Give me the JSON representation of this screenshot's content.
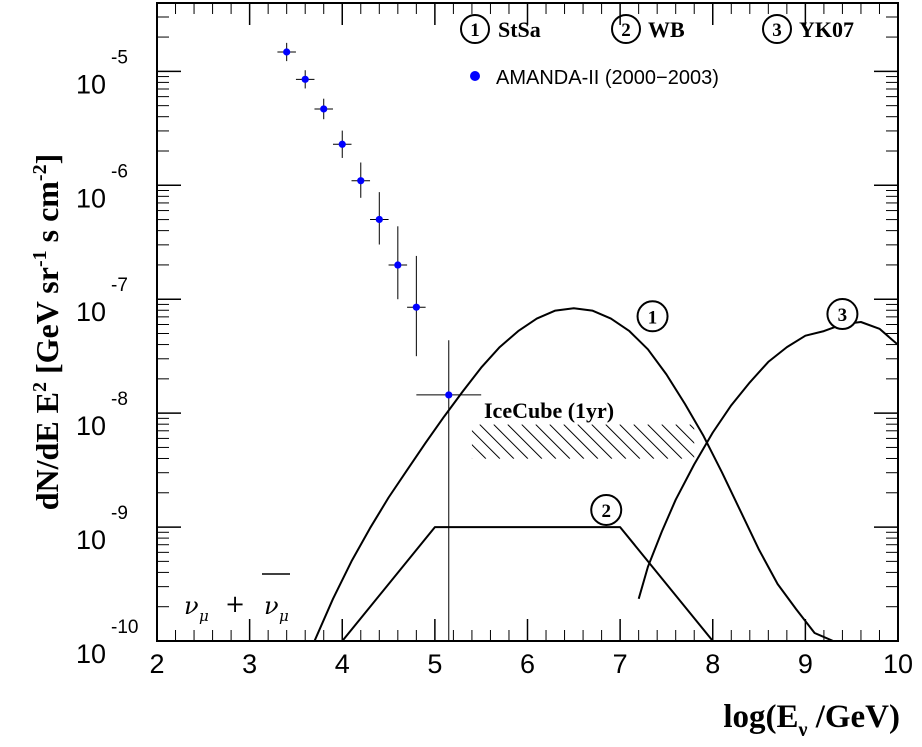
{
  "chart_data": {
    "type": "line",
    "xlabel": "log(E",
    "xlabel_sub": "ν",
    "xlabel_tail": " /GeV)",
    "ylabel": "dN/dE E",
    "ylabel_tail": " [GeV sr",
    "ylabel_units": "s cm",
    "xlim": [
      2,
      10
    ],
    "ylim_log10": [
      -10,
      -4.4
    ],
    "y_scale": "log",
    "x_ticks": [
      "2",
      "3",
      "4",
      "5",
      "6",
      "7",
      "8",
      "9",
      "10"
    ],
    "y_ticks": [
      {
        "base": "10",
        "exp": "-5",
        "value": -5
      },
      {
        "base": "10",
        "exp": "-6",
        "value": -6
      },
      {
        "base": "10",
        "exp": "-7",
        "value": -7
      },
      {
        "base": "10",
        "exp": "-8",
        "value": -8
      },
      {
        "base": "10",
        "exp": "-9",
        "value": -9
      },
      {
        "base": "10",
        "exp": "-10",
        "value": -10
      }
    ],
    "legend": {
      "placement": "top-right",
      "models": [
        {
          "num": "1",
          "label": "StSa"
        },
        {
          "num": "2",
          "label": "WB"
        },
        {
          "num": "3",
          "label": "YK07"
        }
      ],
      "data_label": "AMANDA-II (2000−2003)",
      "data_color": "#0000ff"
    },
    "data_points": [
      {
        "x": 3.4,
        "y": -4.83,
        "xerr": 0.1,
        "yerr": [
          0.08,
          0.08
        ]
      },
      {
        "x": 3.6,
        "y": -5.07,
        "xerr": 0.1,
        "yerr": [
          0.08,
          0.08
        ]
      },
      {
        "x": 3.8,
        "y": -5.33,
        "xerr": 0.1,
        "yerr": [
          0.09,
          0.09
        ]
      },
      {
        "x": 4.0,
        "y": -5.64,
        "xerr": 0.1,
        "yerr": [
          0.12,
          0.12
        ]
      },
      {
        "x": 4.2,
        "y": -5.96,
        "xerr": 0.1,
        "yerr": [
          0.15,
          0.16
        ]
      },
      {
        "x": 4.4,
        "y": -6.3,
        "xerr": 0.1,
        "yerr": [
          0.22,
          0.24
        ]
      },
      {
        "x": 4.6,
        "y": -6.7,
        "xerr": 0.1,
        "yerr": [
          0.3,
          0.34
        ]
      },
      {
        "x": 4.8,
        "y": -7.07,
        "xerr": 0.1,
        "yerr": [
          0.43,
          0.45
        ]
      },
      {
        "x": 5.15,
        "y": -7.84,
        "xerr": 0.35,
        "yerr": [
          2.2,
          0.48
        ]
      }
    ],
    "series": [
      {
        "name": "StSa",
        "num": "1",
        "x": [
          3.7,
          3.9,
          4.1,
          4.3,
          4.5,
          4.7,
          4.9,
          5.1,
          5.3,
          5.5,
          5.7,
          5.9,
          6.1,
          6.3,
          6.5,
          6.7,
          6.9,
          7.1,
          7.3,
          7.5,
          7.7,
          7.9,
          8.1,
          8.3,
          8.5,
          8.7,
          8.9,
          9.1,
          9.3,
          9.35
        ],
        "y": [
          -10.0,
          -9.63,
          -9.3,
          -9.01,
          -8.74,
          -8.5,
          -8.26,
          -8.03,
          -7.81,
          -7.6,
          -7.42,
          -7.28,
          -7.17,
          -7.1,
          -7.08,
          -7.1,
          -7.17,
          -7.28,
          -7.44,
          -7.66,
          -7.92,
          -8.2,
          -8.52,
          -8.86,
          -9.2,
          -9.5,
          -9.72,
          -9.93,
          -10.0,
          -10.0
        ]
      },
      {
        "name": "WB",
        "num": "2",
        "x": [
          4.0,
          5.0,
          7.0,
          8.0
        ],
        "y": [
          -10.0,
          -9.0,
          -9.0,
          -10.0
        ]
      },
      {
        "name": "YK07",
        "num": "3",
        "x": [
          7.2,
          7.3,
          7.45,
          7.6,
          7.8,
          8.0,
          8.2,
          8.4,
          8.6,
          8.8,
          9.0,
          9.2,
          9.4,
          9.6,
          9.8,
          10.0
        ],
        "y": [
          -9.63,
          -9.35,
          -9.04,
          -8.76,
          -8.45,
          -8.17,
          -7.93,
          -7.73,
          -7.55,
          -7.42,
          -7.32,
          -7.28,
          -7.22,
          -7.2,
          -7.26,
          -7.4
        ]
      }
    ],
    "icecube_band": {
      "label": "IceCube (1yr)",
      "x": [
        5.4,
        7.8
      ],
      "y": [
        -8.4,
        -8.1
      ]
    },
    "marker_positions": [
      {
        "num": "1",
        "x": 7.35,
        "y": -7.15
      },
      {
        "num": "2",
        "x": 6.85,
        "y": -8.85
      },
      {
        "num": "3",
        "x": 9.4,
        "y": -7.13
      }
    ],
    "annotation": {
      "nu": "ν",
      "sub": "μ",
      "plus": "+"
    }
  }
}
